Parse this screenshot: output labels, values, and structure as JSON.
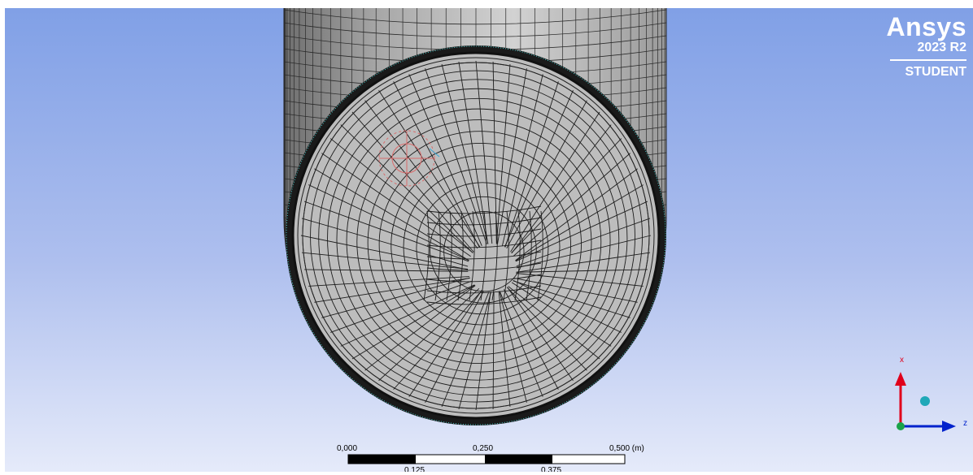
{
  "logo": {
    "brand": "Ansys",
    "version": "2023 R2",
    "edition": "STUDENT"
  },
  "scale_bar": {
    "labels_top": [
      "0,000",
      "0,250",
      "0,500 (m)"
    ],
    "labels_bottom": [
      "0,125",
      "0,375"
    ]
  },
  "triad": {
    "x_label": "x",
    "z_label": "z",
    "x_color": "#e0001b",
    "z_color": "#0022cc",
    "origin_color": "#1aa34a",
    "iso_ball_color": "#20a8b8"
  },
  "colors": {
    "background_top": "#7f9fe6",
    "background_bottom": "#e6ebfa",
    "mesh_face": "#bdbdbd",
    "mesh_line": "#1c1c1c"
  }
}
